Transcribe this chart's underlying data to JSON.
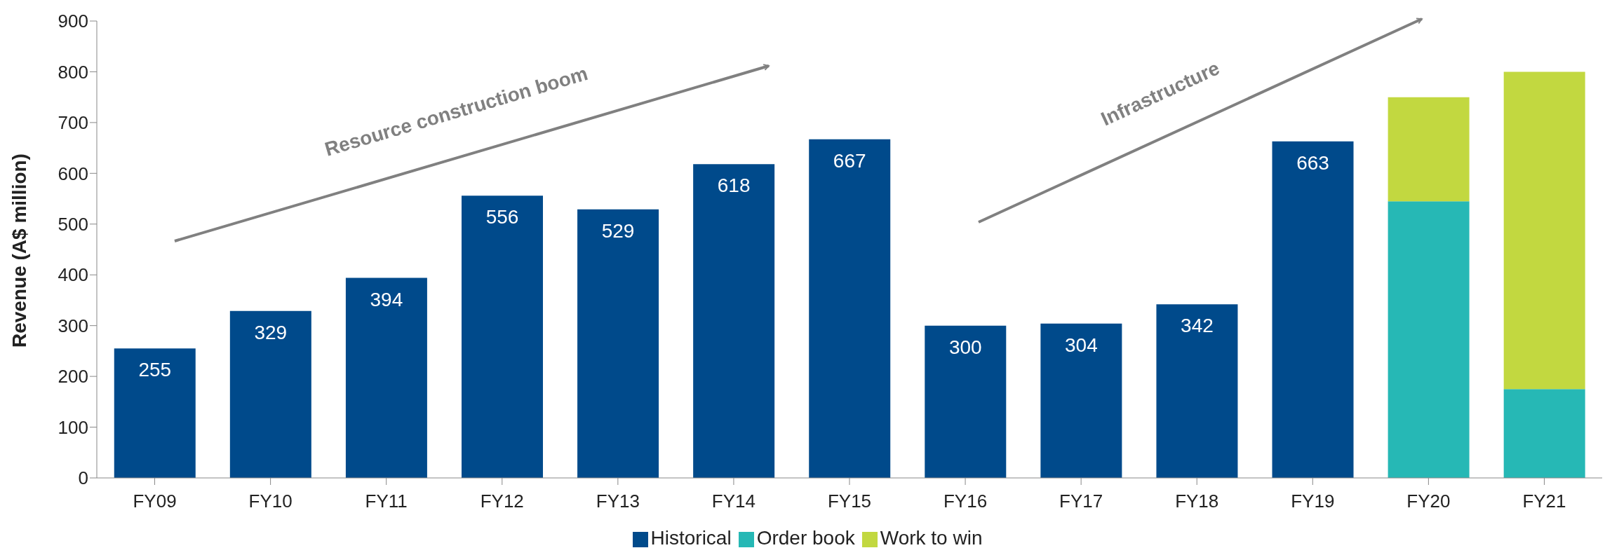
{
  "chart_data": {
    "type": "bar",
    "stacked": true,
    "ylabel": "Revenue (A$ million)",
    "categories": [
      "FY09",
      "FY10",
      "FY11",
      "FY12",
      "FY13",
      "FY14",
      "FY15",
      "FY16",
      "FY17",
      "FY18",
      "FY19",
      "FY20",
      "FY21"
    ],
    "series": [
      {
        "name": "Historical",
        "color": "#004a8b",
        "values": [
          255,
          329,
          394,
          556,
          529,
          618,
          667,
          300,
          304,
          342,
          663,
          null,
          null
        ],
        "value_labels": [
          "255",
          "329",
          "394",
          "556",
          "529",
          "618",
          "667",
          "300",
          "304",
          "342",
          "663",
          null,
          null
        ]
      },
      {
        "name": "Order book",
        "color": "#26b8b5",
        "values": [
          null,
          null,
          null,
          null,
          null,
          null,
          null,
          null,
          null,
          null,
          null,
          545,
          175
        ]
      },
      {
        "name": "Work to win",
        "color": "#c2d840",
        "values": [
          null,
          null,
          null,
          null,
          null,
          null,
          null,
          null,
          null,
          null,
          null,
          205,
          625
        ]
      }
    ],
    "ylim": [
      0,
      900
    ],
    "yticks": [
      0,
      100,
      200,
      300,
      400,
      500,
      600,
      700,
      800,
      900
    ],
    "grid": false,
    "legend": "bottom",
    "annotations": [
      "Resource construction boom",
      "Infrastructure"
    ]
  }
}
